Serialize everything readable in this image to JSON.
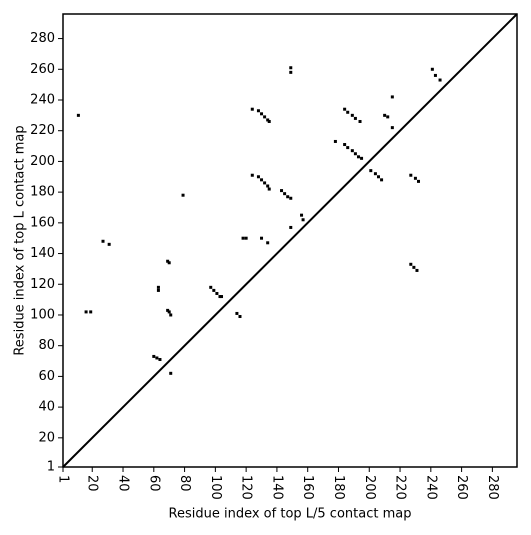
{
  "chart_data": {
    "type": "scatter",
    "xlabel": "Residue index of top L/5 contact map",
    "ylabel": "Residue index of top L contact map",
    "xlim": [
      1,
      296
    ],
    "ylim": [
      1,
      296
    ],
    "xticks": [
      1,
      20,
      40,
      60,
      80,
      100,
      120,
      140,
      160,
      180,
      200,
      220,
      240,
      260,
      280
    ],
    "yticks": [
      1,
      20,
      40,
      60,
      80,
      100,
      120,
      140,
      160,
      180,
      200,
      220,
      240,
      260,
      280
    ],
    "diagonal": true,
    "color": "#000000",
    "x": [
      11,
      16,
      19,
      27,
      31,
      60,
      62,
      64,
      63,
      63,
      69,
      70,
      69,
      70,
      71,
      71,
      79,
      97,
      99,
      101,
      103,
      104,
      114,
      116,
      118,
      120,
      124,
      124,
      128,
      130,
      132,
      134,
      135,
      128,
      130,
      132,
      134,
      135,
      130,
      134,
      143,
      145,
      147,
      149,
      149,
      149,
      149,
      156,
      157,
      178,
      184,
      186,
      189,
      191,
      193,
      195,
      184,
      186,
      189,
      191,
      194,
      201,
      204,
      206,
      208,
      210,
      212,
      215,
      215,
      227,
      230,
      232,
      227,
      229,
      231,
      241,
      243,
      246
    ],
    "values": [
      230,
      102,
      102,
      148,
      146,
      73,
      72,
      71,
      118,
      116,
      135,
      134,
      103,
      102,
      100,
      62,
      178,
      118,
      116,
      114,
      112,
      112,
      101,
      99,
      150,
      150,
      191,
      234,
      233,
      231,
      229,
      227,
      226,
      190,
      188,
      186,
      184,
      182,
      150,
      147,
      181,
      179,
      177,
      176,
      261,
      258,
      157,
      165,
      162,
      213,
      211,
      209,
      207,
      205,
      203,
      202,
      234,
      232,
      230,
      228,
      226,
      194,
      192,
      190,
      188,
      230,
      229,
      242,
      222,
      191,
      189,
      187,
      133,
      131,
      129,
      260,
      256,
      253
    ]
  }
}
